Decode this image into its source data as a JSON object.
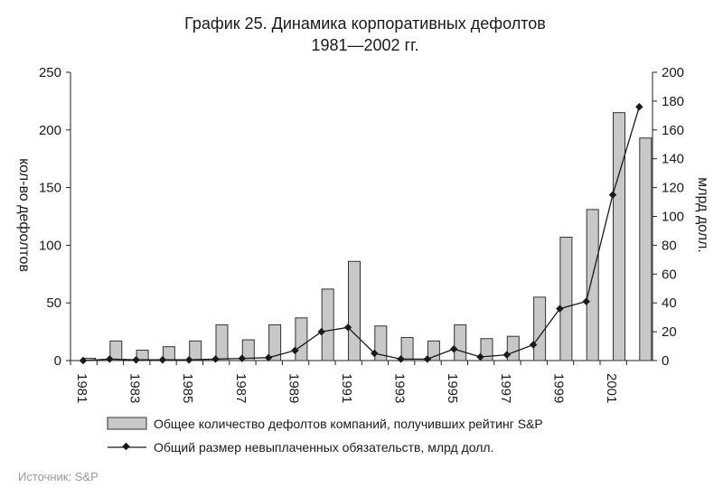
{
  "chart_data": {
    "type": "bar+line",
    "title": "График 25. Динамика корпоративных дефолтов",
    "subtitle": "1981—2002 гг.",
    "x": [
      1981,
      1982,
      1983,
      1984,
      1985,
      1986,
      1987,
      1988,
      1989,
      1990,
      1991,
      1992,
      1993,
      1994,
      1995,
      1996,
      1997,
      1998,
      1999,
      2000,
      2001,
      2002
    ],
    "x_tick_labels": [
      "1981",
      "1983",
      "1985",
      "1987",
      "1989",
      "1991",
      "1993",
      "1995",
      "1997",
      "1999",
      "2001"
    ],
    "y_left": {
      "label": "кол-во дефолтов",
      "ylim": [
        0,
        250
      ],
      "ticks": [
        "0",
        "50",
        "100",
        "150",
        "200",
        "250"
      ]
    },
    "y_right": {
      "label": "млрд долл.",
      "ylim": [
        0,
        200
      ],
      "ticks": [
        "0",
        "20",
        "40",
        "60",
        "80",
        "100",
        "120",
        "140",
        "160",
        "180",
        "200"
      ]
    },
    "series": [
      {
        "name": "Общее количество дефолтов компаний, получивших рейтинг S&P",
        "kind": "bar",
        "axis": "left",
        "color": "#c8c8c8",
        "values": [
          2,
          17,
          9,
          12,
          17,
          31,
          18,
          31,
          37,
          62,
          86,
          30,
          20,
          17,
          31,
          19,
          21,
          55,
          107,
          131,
          215,
          193
        ]
      },
      {
        "name": "Общий размер невыплаченных обязательств, млрд долл.",
        "kind": "line",
        "axis": "right",
        "color": "#1a1a1a",
        "values": [
          0,
          1,
          0.5,
          0.5,
          0.5,
          1,
          1.5,
          2,
          7,
          20,
          23,
          5,
          1,
          1,
          8,
          2.5,
          4,
          11,
          36,
          41,
          115,
          176
        ]
      }
    ],
    "legend_position": "bottom",
    "grid": false
  },
  "source": "Источник: S&P"
}
